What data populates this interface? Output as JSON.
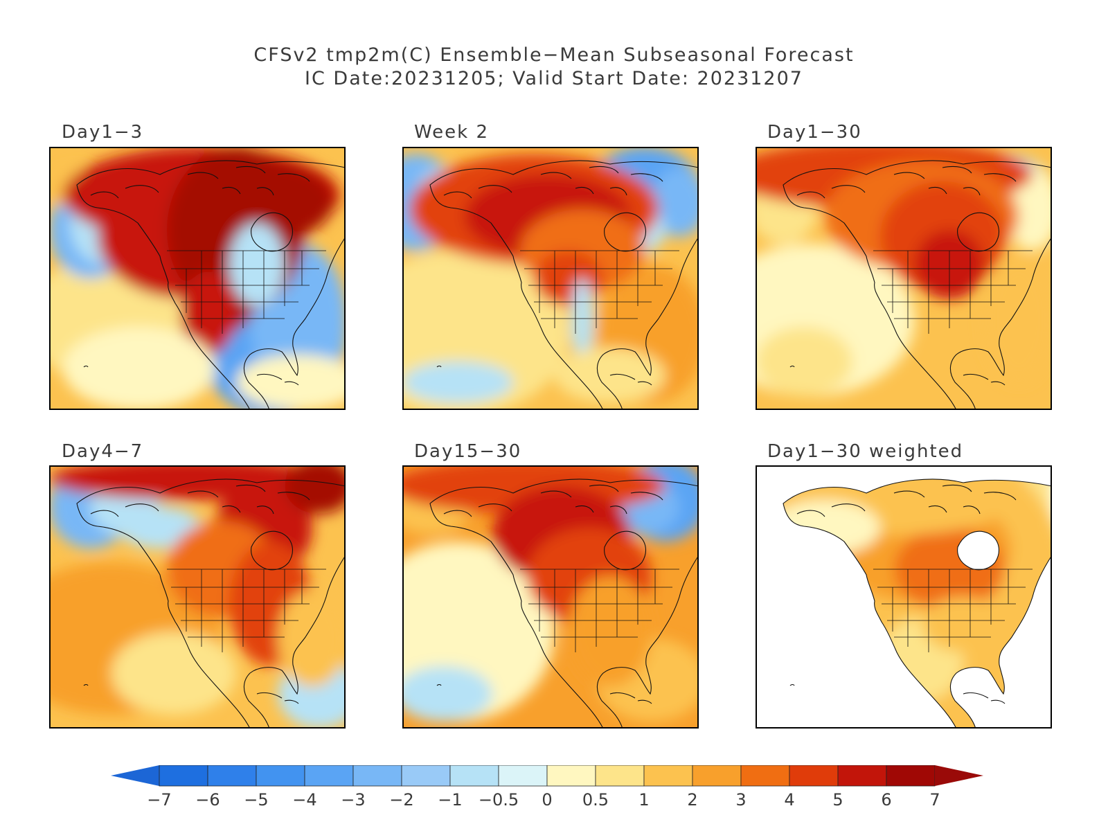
{
  "title": {
    "line1": "CFSv2 tmp2m(C) Ensemble−Mean Subseasonal Forecast",
    "line2": "IC Date:20231205; Valid Start Date: 20231207"
  },
  "panels": [
    {
      "label": "Day1−3",
      "id": "p1",
      "style": "a"
    },
    {
      "label": "Week 2",
      "id": "p2",
      "style": "b"
    },
    {
      "label": "Day1−30",
      "id": "p3",
      "style": "c"
    },
    {
      "label": "Day4−7",
      "id": "p4",
      "style": "d"
    },
    {
      "label": "Day15−30",
      "id": "p5",
      "style": "e"
    },
    {
      "label": "Day1−30 weighted",
      "id": "p6",
      "style": "w"
    }
  ],
  "colorbar": {
    "tick_labels": [
      "−7",
      "−6",
      "−5",
      "−4",
      "−3",
      "−2",
      "−1",
      "−0.5",
      "0",
      "0.5",
      "1",
      "2",
      "3",
      "4",
      "5",
      "6",
      "7"
    ],
    "colors": [
      "#1e6fe0",
      "#2f80ea",
      "#4293f0",
      "#5aa4f4",
      "#78b7f6",
      "#99caf7",
      "#b6e2f6",
      "#dbf4f8",
      "#fff7c0",
      "#fde48a",
      "#fcc24f",
      "#f8a02c",
      "#f06e12",
      "#e03c0a",
      "#c2150a",
      "#a00805"
    ],
    "low_arrow_color": "#1c66d6",
    "high_arrow_color": "#9a0a08"
  }
}
